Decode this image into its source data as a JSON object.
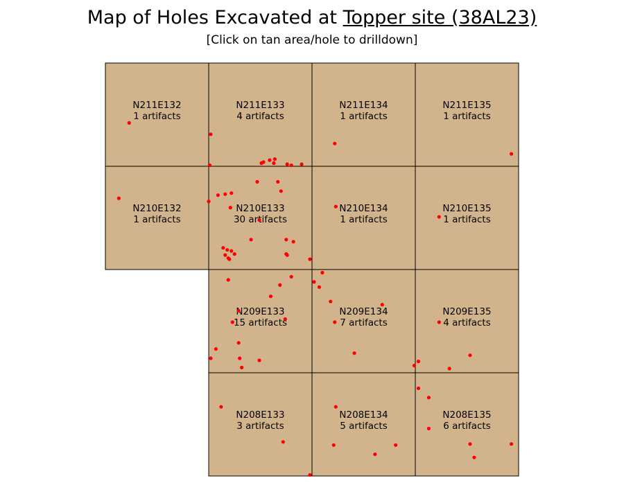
{
  "header": {
    "title_prefix": "Map of Holes Excavated at ",
    "site_link": "Topper site (38AL23)",
    "subtitle": "[Click on tan area/hole to drilldown]"
  },
  "colors": {
    "cell_fill": "#d2b48c",
    "hole": "#ff0000",
    "grid_line": "#000000"
  },
  "grid": {
    "columns": [
      "E132",
      "E133",
      "E134",
      "E135"
    ],
    "rows": [
      "N211",
      "N210",
      "N209",
      "N208"
    ],
    "cells": [
      {
        "id": "N211E132",
        "row": 0,
        "col": 0,
        "label": "N211E132",
        "count_text": "1 artifacts",
        "count": 1
      },
      {
        "id": "N211E133",
        "row": 0,
        "col": 1,
        "label": "N211E133",
        "count_text": "4 artifacts",
        "count": 4
      },
      {
        "id": "N211E134",
        "row": 0,
        "col": 2,
        "label": "N211E134",
        "count_text": "1 artifacts",
        "count": 1
      },
      {
        "id": "N211E135",
        "row": 0,
        "col": 3,
        "label": "N211E135",
        "count_text": "1 artifacts",
        "count": 1
      },
      {
        "id": "N210E132",
        "row": 1,
        "col": 0,
        "label": "N210E132",
        "count_text": "1 artifacts",
        "count": 1
      },
      {
        "id": "N210E133",
        "row": 1,
        "col": 1,
        "label": "N210E133",
        "count_text": "30 artifacts",
        "count": 30
      },
      {
        "id": "N210E134",
        "row": 1,
        "col": 2,
        "label": "N210E134",
        "count_text": "1 artifacts",
        "count": 1
      },
      {
        "id": "N210E135",
        "row": 1,
        "col": 3,
        "label": "N210E135",
        "count_text": "1 artifacts",
        "count": 1
      },
      {
        "id": "N209E133",
        "row": 2,
        "col": 1,
        "label": "N209E133",
        "count_text": "15 artifacts",
        "count": 15
      },
      {
        "id": "N209E134",
        "row": 2,
        "col": 2,
        "label": "N209E134",
        "count_text": "7 artifacts",
        "count": 7
      },
      {
        "id": "N209E135",
        "row": 2,
        "col": 3,
        "label": "N209E135",
        "count_text": "4 artifacts",
        "count": 4
      },
      {
        "id": "N208E133",
        "row": 3,
        "col": 1,
        "label": "N208E133",
        "count_text": "3 artifacts",
        "count": 3
      },
      {
        "id": "N208E134",
        "row": 3,
        "col": 2,
        "label": "N208E134",
        "count_text": "5 artifacts",
        "count": 5
      },
      {
        "id": "N208E135",
        "row": 3,
        "col": 3,
        "label": "N208E135",
        "count_text": "6 artifacts",
        "count": 6
      }
    ]
  },
  "holes": [
    [
      132.23,
      211.42
    ],
    [
      133.02,
      211.31
    ],
    [
      134.22,
      211.22
    ],
    [
      135.93,
      211.12
    ],
    [
      133.01,
      211.01
    ],
    [
      133.51,
      211.03
    ],
    [
      133.53,
      211.04
    ],
    [
      133.59,
      211.06
    ],
    [
      133.64,
      211.07
    ],
    [
      133.63,
      211.03
    ],
    [
      133.76,
      211.02
    ],
    [
      133.8,
      211.01
    ],
    [
      133.9,
      211.02
    ],
    [
      133.47,
      210.85
    ],
    [
      133.67,
      210.85
    ],
    [
      133.7,
      210.76
    ],
    [
      132.13,
      210.69
    ],
    [
      133.09,
      210.72
    ],
    [
      133.16,
      210.73
    ],
    [
      133.22,
      210.74
    ],
    [
      133.0,
      210.66
    ],
    [
      133.21,
      210.6
    ],
    [
      133.49,
      210.48
    ],
    [
      134.23,
      210.61
    ],
    [
      135.23,
      210.51
    ],
    [
      133.41,
      210.29
    ],
    [
      133.75,
      210.29
    ],
    [
      133.82,
      210.27
    ],
    [
      133.14,
      210.21
    ],
    [
      133.18,
      210.19
    ],
    [
      133.22,
      210.18
    ],
    [
      133.25,
      210.15
    ],
    [
      133.75,
      210.15
    ],
    [
      133.76,
      210.14
    ],
    [
      133.16,
      210.14
    ],
    [
      133.19,
      210.11
    ],
    [
      133.2,
      210.1
    ],
    [
      133.98,
      210.1
    ],
    [
      133.19,
      209.9
    ],
    [
      133.8,
      209.93
    ],
    [
      133.69,
      209.85
    ],
    [
      134.02,
      209.88
    ],
    [
      134.07,
      209.83
    ],
    [
      134.1,
      209.97
    ],
    [
      133.6,
      209.74
    ],
    [
      134.18,
      209.69
    ],
    [
      134.68,
      209.66
    ],
    [
      133.29,
      209.6
    ],
    [
      133.74,
      209.52
    ],
    [
      133.23,
      209.49
    ],
    [
      134.22,
      209.49
    ],
    [
      135.23,
      209.49
    ],
    [
      133.29,
      209.29
    ],
    [
      133.07,
      209.23
    ],
    [
      134.41,
      209.19
    ],
    [
      135.53,
      209.17
    ],
    [
      133.02,
      209.14
    ],
    [
      133.3,
      209.14
    ],
    [
      133.49,
      209.12
    ],
    [
      135.03,
      209.11
    ],
    [
      133.32,
      209.05
    ],
    [
      134.99,
      209.07
    ],
    [
      135.33,
      209.04
    ],
    [
      135.03,
      208.85
    ],
    [
      135.13,
      208.76
    ],
    [
      133.12,
      208.67
    ],
    [
      134.23,
      208.67
    ],
    [
      135.13,
      208.46
    ],
    [
      133.72,
      208.33
    ],
    [
      134.21,
      208.3
    ],
    [
      134.81,
      208.3
    ],
    [
      134.61,
      208.21
    ],
    [
      135.53,
      208.31
    ],
    [
      135.93,
      208.31
    ],
    [
      135.57,
      208.18
    ],
    [
      133.98,
      208.01
    ]
  ]
}
